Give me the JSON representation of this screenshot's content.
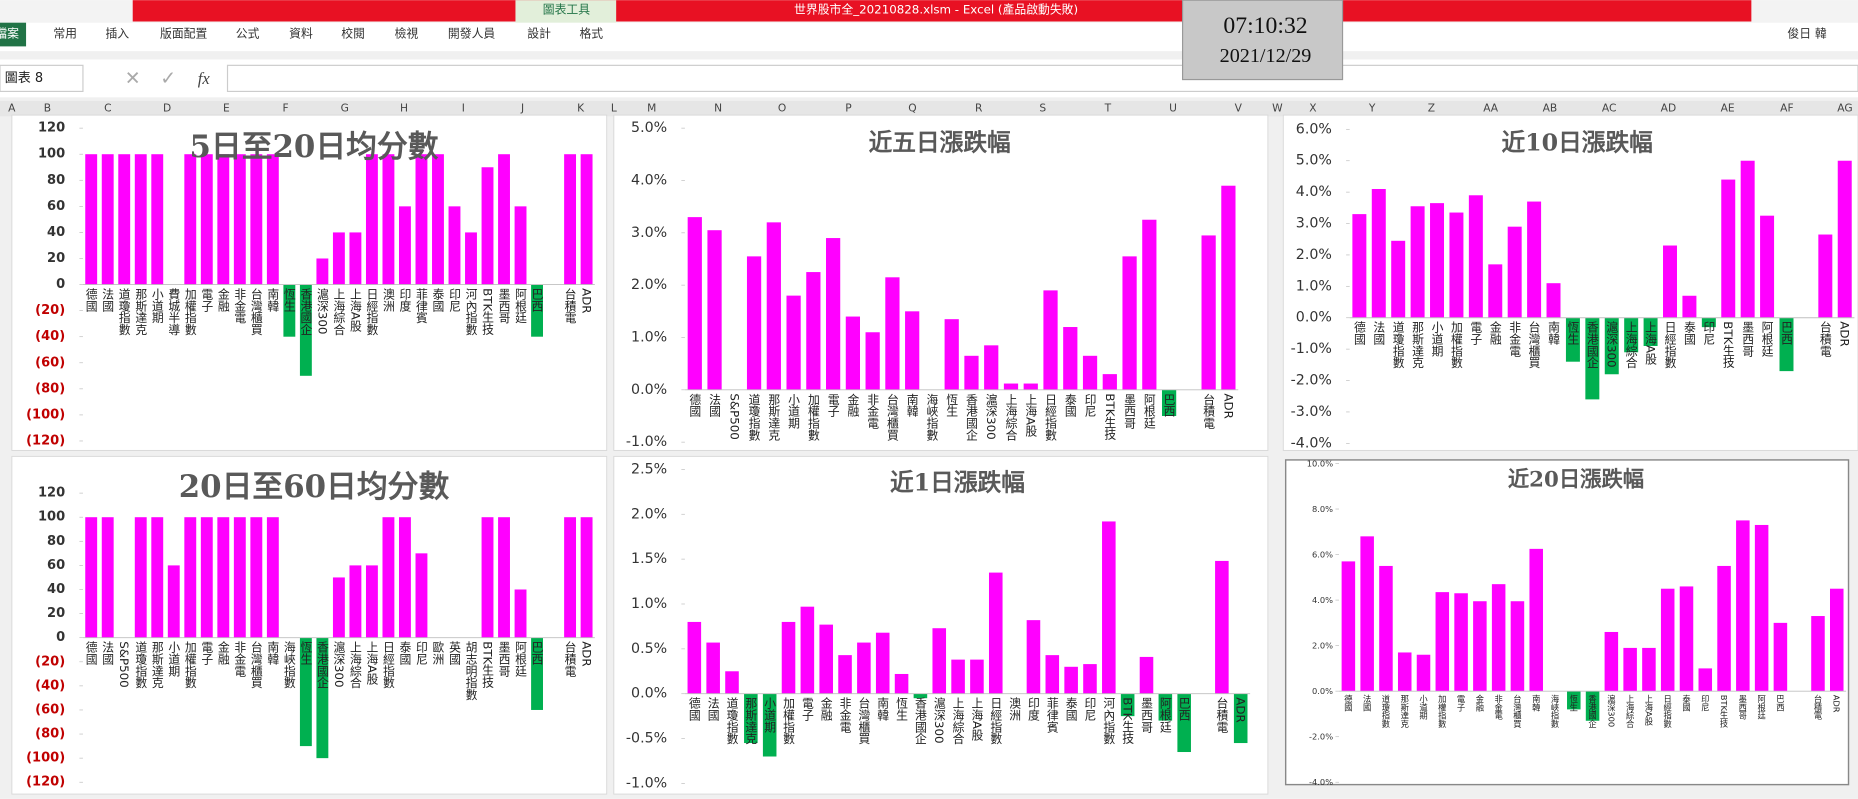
{
  "window": {
    "title": "世界股市全_20210828.xlsm - Excel (產品啟動失敗)",
    "chart_tools": "圖表工具",
    "tabs": [
      "檔案",
      "常用",
      "插入",
      "版面配置",
      "公式",
      "資料",
      "校閱",
      "檢視",
      "開發人員",
      "設計",
      "格式"
    ],
    "user": "俊日 韓"
  },
  "clock": {
    "time": "07:10:32",
    "date": "2021/12/29"
  },
  "formula_bar": {
    "name_box": "圖表 8",
    "fx": "fx"
  },
  "sheet": {
    "columns": [
      "A",
      "B",
      "C",
      "D",
      "E",
      "F",
      "G",
      "H",
      "I",
      "J",
      "K",
      "L",
      "M",
      "N",
      "O",
      "P",
      "Q",
      "R",
      "S",
      "T",
      "U",
      "V",
      "W",
      "X",
      "Y",
      "Z",
      "AA",
      "AB",
      "AC",
      "AD",
      "AE",
      "AF",
      "AG"
    ]
  },
  "chart_data": [
    {
      "type": "bar",
      "title": "5日至20日均分數",
      "color": "#ff00ff",
      "negative_color": "#00b050",
      "negative_tick_color": "#c00000",
      "grid": false,
      "categories": [
        "德國",
        "法國",
        "道瓊指數",
        "那斯達克",
        "小道期",
        "費城半導",
        "加權指數",
        "電子",
        "金融",
        "非金電",
        "台灣櫃買",
        "南韓",
        "恆生",
        "香港國企",
        "滬深300",
        "上海綜合",
        "上海A股",
        "日經指數",
        "澳洲",
        "印度",
        "菲律賓",
        "泰國",
        "印尼",
        "河內指數",
        "BTK生技",
        "墨西哥",
        "阿根廷",
        "巴西",
        null,
        "台積電",
        "ADR"
      ],
      "values": [
        100,
        100,
        100,
        100,
        100,
        0,
        100,
        100,
        100,
        100,
        100,
        100,
        -40,
        -70,
        20,
        40,
        40,
        100,
        100,
        60,
        100,
        100,
        60,
        40,
        90,
        100,
        60,
        -40,
        null,
        100,
        100
      ],
      "ylim": [
        -120,
        120
      ],
      "yticks": [
        120,
        100,
        80,
        60,
        40,
        20,
        0,
        {
          "value": -20,
          "label": "(20)"
        },
        {
          "value": -40,
          "label": "(40)"
        },
        {
          "value": -60,
          "label": "(60)"
        },
        {
          "value": -80,
          "label": "(80)"
        },
        {
          "value": -100,
          "label": "(100)"
        },
        {
          "value": -120,
          "label": "(120)"
        }
      ]
    },
    {
      "type": "bar",
      "title": "近五日漲跌幅",
      "color": "#ff00ff",
      "negative_color": "#00b050",
      "grid": false,
      "categories": [
        "德國",
        "法國",
        "S&P500",
        "道瓊指數",
        "那斯達克",
        "小道期",
        "加權指數",
        "電子",
        "金融",
        "非金電",
        "台灣櫃買",
        "南韓",
        "海峽指數",
        "恆生",
        "香港國企",
        "滬深300",
        "上海綜合",
        "上海A股",
        "日經指數",
        "泰國",
        "印尼",
        "BTK生技",
        "墨西哥",
        "阿根廷",
        "巴西",
        null,
        "台積電",
        "ADR"
      ],
      "values": [
        3.3,
        3.05,
        0,
        2.55,
        3.2,
        1.8,
        2.25,
        2.9,
        1.4,
        1.1,
        2.15,
        1.5,
        0,
        1.35,
        0.65,
        0.85,
        0.12,
        0.12,
        1.9,
        1.2,
        0.65,
        0.3,
        2.55,
        3.25,
        -0.5,
        null,
        2.95,
        3.9
      ],
      "ylim": [
        -1,
        5
      ],
      "yticks": [
        {
          "value": 5,
          "label": "5.0%"
        },
        {
          "value": 4,
          "label": "4.0%"
        },
        {
          "value": 3,
          "label": "3.0%"
        },
        {
          "value": 2,
          "label": "2.0%"
        },
        {
          "value": 1,
          "label": "1.0%"
        },
        {
          "value": 0,
          "label": "0.0%"
        },
        {
          "value": -1,
          "label": "-1.0%"
        }
      ]
    },
    {
      "type": "bar",
      "title": "近10日漲跌幅",
      "color": "#ff00ff",
      "negative_color": "#00b050",
      "grid": false,
      "categories": [
        "德國",
        "法國",
        "道瓊指數",
        "那斯達克",
        "小道期",
        "加權指數",
        "電子",
        "金融",
        "非金電",
        "台灣櫃買",
        "南韓",
        "恆生",
        "香港國企",
        "滬深300",
        "上海綜合",
        "上海A股",
        "日經指數",
        "泰國",
        "印尼",
        "BTK生技",
        "墨西哥",
        "阿根廷",
        "巴西",
        null,
        "台積電",
        "ADR"
      ],
      "values": [
        3.3,
        4.1,
        2.45,
        3.55,
        3.65,
        3.35,
        3.9,
        1.7,
        2.9,
        3.7,
        1.1,
        -1.4,
        -2.6,
        -1.8,
        -1.1,
        -0.9,
        2.3,
        0.7,
        -0.3,
        4.4,
        5.0,
        3.25,
        -1.7,
        null,
        2.65,
        5.0
      ],
      "ylim": [
        -4,
        6
      ],
      "yticks": [
        {
          "value": 6,
          "label": "6.0%"
        },
        {
          "value": 5,
          "label": "5.0%"
        },
        {
          "value": 4,
          "label": "4.0%"
        },
        {
          "value": 3,
          "label": "3.0%"
        },
        {
          "value": 2,
          "label": "2.0%"
        },
        {
          "value": 1,
          "label": "1.0%"
        },
        {
          "value": 0,
          "label": "0.0%"
        },
        {
          "value": -1,
          "label": "-1.0%"
        },
        {
          "value": -2,
          "label": "-2.0%"
        },
        {
          "value": -3,
          "label": "-3.0%"
        },
        {
          "value": -4,
          "label": "-4.0%"
        }
      ]
    },
    {
      "type": "bar",
      "title": "20日至60日均分數",
      "color": "#ff00ff",
      "negative_color": "#00b050",
      "negative_tick_color": "#c00000",
      "grid": false,
      "categories": [
        "德國",
        "法國",
        "S&P500",
        "道瓊指數",
        "那斯達克",
        "小道期",
        "加權指數",
        "電子",
        "金融",
        "非金電",
        "台灣櫃買",
        "南韓",
        "海峽指數",
        "恆生",
        "香港國企",
        "滬深300",
        "上海綜合",
        "上海A股",
        "日經指數",
        "泰國",
        "印尼",
        "歐洲",
        "英國",
        "胡志明指數",
        "BTK生技",
        "墨西哥",
        "阿根廷",
        "巴西",
        null,
        "台積電",
        "ADR"
      ],
      "values": [
        100,
        100,
        0,
        100,
        100,
        60,
        100,
        100,
        100,
        100,
        100,
        100,
        0,
        -90,
        -100,
        50,
        60,
        60,
        100,
        100,
        70,
        0,
        0,
        0,
        100,
        100,
        40,
        -60,
        null,
        100,
        100
      ],
      "ylim": [
        -120,
        120
      ],
      "yticks": [
        120,
        100,
        80,
        60,
        40,
        20,
        0,
        {
          "value": -20,
          "label": "(20)"
        },
        {
          "value": -40,
          "label": "(40)"
        },
        {
          "value": -60,
          "label": "(60)"
        },
        {
          "value": -80,
          "label": "(80)"
        },
        {
          "value": -100,
          "label": "(100)"
        },
        {
          "value": -120,
          "label": "(120)"
        }
      ]
    },
    {
      "type": "bar",
      "title": "近1日漲跌幅",
      "color": "#ff00ff",
      "negative_color": "#00b050",
      "grid": false,
      "categories": [
        "德國",
        "法國",
        "道瓊指數",
        "那斯達克",
        "小道期",
        "加權指數",
        "電子",
        "金融",
        "非金電",
        "台灣櫃買",
        "南韓",
        "恆生",
        "香港國企",
        "滬深300",
        "上海綜合",
        "上海A股",
        "日經指數",
        "澳洲",
        "印度",
        "菲律賓",
        "泰國",
        "印尼",
        "河內指數",
        "BTK生技",
        "墨西哥",
        "阿根廷",
        "巴西",
        null,
        "台積電",
        "ADR"
      ],
      "values": [
        0.8,
        0.57,
        0.25,
        -0.55,
        -0.7,
        0.8,
        0.97,
        0.77,
        0.43,
        0.57,
        0.68,
        0.22,
        -0.05,
        0.73,
        0.38,
        0.38,
        1.35,
        0,
        0.82,
        0.43,
        0.3,
        0.33,
        1.92,
        -0.25,
        0.41,
        -0.3,
        -0.65,
        null,
        1.48,
        -0.55
      ],
      "ylim": [
        -1,
        2.5
      ],
      "yticks": [
        {
          "value": 2.5,
          "label": "2.5%"
        },
        {
          "value": 2,
          "label": "2.0%"
        },
        {
          "value": 1.5,
          "label": "1.5%"
        },
        {
          "value": 1,
          "label": "1.0%"
        },
        {
          "value": 0.5,
          "label": "0.5%"
        },
        {
          "value": 0,
          "label": "0.0%"
        },
        {
          "value": -0.5,
          "label": "-0.5%"
        },
        {
          "value": -1,
          "label": "-1.0%"
        }
      ]
    },
    {
      "type": "bar",
      "title": "近20日漲跌幅",
      "color": "#ff00ff",
      "negative_color": "#00b050",
      "grid": false,
      "categories": [
        "德國",
        "法國",
        "道瓊指數",
        "那斯達克",
        "小道期",
        "加權指數",
        "電子",
        "金融",
        "非金電",
        "台灣櫃買",
        "南韓",
        "海峽指數",
        "恆生",
        "香港國企",
        "滬深300",
        "上海綜合",
        "上海A股",
        "日經指數",
        "泰國",
        "印尼",
        "BTK生技",
        "墨西哥",
        "阿根廷",
        "巴西",
        null,
        "台積電",
        "ADR"
      ],
      "values": [
        5.7,
        6.8,
        5.5,
        1.7,
        1.6,
        4.35,
        4.3,
        3.95,
        4.7,
        3.95,
        6.25,
        0,
        -0.8,
        -1.3,
        2.6,
        1.9,
        1.9,
        4.5,
        4.6,
        1.0,
        5.5,
        7.5,
        7.3,
        3.0,
        null,
        3.3,
        4.5
      ],
      "ylim": [
        -4,
        10
      ],
      "yticks": [
        {
          "value": 10,
          "label": "10.0%"
        },
        {
          "value": 8,
          "label": "8.0%"
        },
        {
          "value": 6,
          "label": "6.0%"
        },
        {
          "value": 4,
          "label": "4.0%"
        },
        {
          "value": 2,
          "label": "2.0%"
        },
        {
          "value": 0,
          "label": "0.0%"
        },
        {
          "value": -2,
          "label": "-2.0%"
        },
        {
          "value": -4,
          "label": "-4.0%"
        }
      ]
    }
  ]
}
